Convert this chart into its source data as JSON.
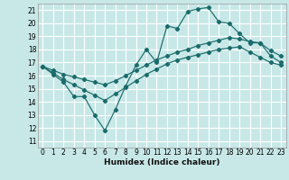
{
  "xlabel": "Humidex (Indice chaleur)",
  "bg_color": "#c8e8e8",
  "grid_color": "#ffffff",
  "line_color": "#1a6b6b",
  "xlim": [
    -0.5,
    23.5
  ],
  "ylim": [
    10.5,
    21.5
  ],
  "xticks": [
    0,
    1,
    2,
    3,
    4,
    5,
    6,
    7,
    8,
    9,
    10,
    11,
    12,
    13,
    14,
    15,
    16,
    17,
    18,
    19,
    20,
    21,
    22,
    23
  ],
  "yticks": [
    11,
    12,
    13,
    14,
    15,
    16,
    17,
    18,
    19,
    20,
    21
  ],
  "line1_x": [
    0,
    1,
    2,
    3,
    4,
    5,
    6,
    7,
    8,
    9,
    10,
    11,
    12,
    13,
    14,
    15,
    16,
    17,
    18,
    19,
    20,
    21,
    22,
    23
  ],
  "line1_y": [
    16.7,
    16.1,
    15.5,
    14.4,
    14.4,
    13.0,
    11.8,
    13.4,
    15.2,
    16.8,
    18.0,
    17.0,
    19.8,
    19.6,
    20.9,
    21.1,
    21.2,
    20.1,
    20.0,
    19.2,
    18.5,
    18.5,
    17.5,
    17.0
  ],
  "line2_x": [
    0,
    1,
    2,
    3,
    4,
    5,
    6,
    7,
    8,
    9,
    10,
    11,
    12,
    13,
    14,
    15,
    16,
    17,
    18,
    19,
    20,
    21,
    22,
    23
  ],
  "line2_y": [
    16.7,
    16.4,
    16.1,
    15.9,
    15.7,
    15.5,
    15.3,
    15.6,
    16.0,
    16.4,
    16.8,
    17.2,
    17.5,
    17.8,
    18.0,
    18.3,
    18.5,
    18.7,
    18.9,
    18.8,
    18.6,
    18.5,
    17.9,
    17.5
  ],
  "line3_x": [
    0,
    1,
    2,
    3,
    4,
    5,
    6,
    7,
    8,
    9,
    10,
    11,
    12,
    13,
    14,
    15,
    16,
    17,
    18,
    19,
    20,
    21,
    22,
    23
  ],
  "line3_y": [
    16.7,
    16.2,
    15.7,
    15.3,
    14.9,
    14.5,
    14.1,
    14.6,
    15.1,
    15.6,
    16.1,
    16.5,
    16.9,
    17.2,
    17.4,
    17.6,
    17.8,
    18.0,
    18.1,
    18.2,
    17.8,
    17.4,
    17.0,
    16.8
  ]
}
